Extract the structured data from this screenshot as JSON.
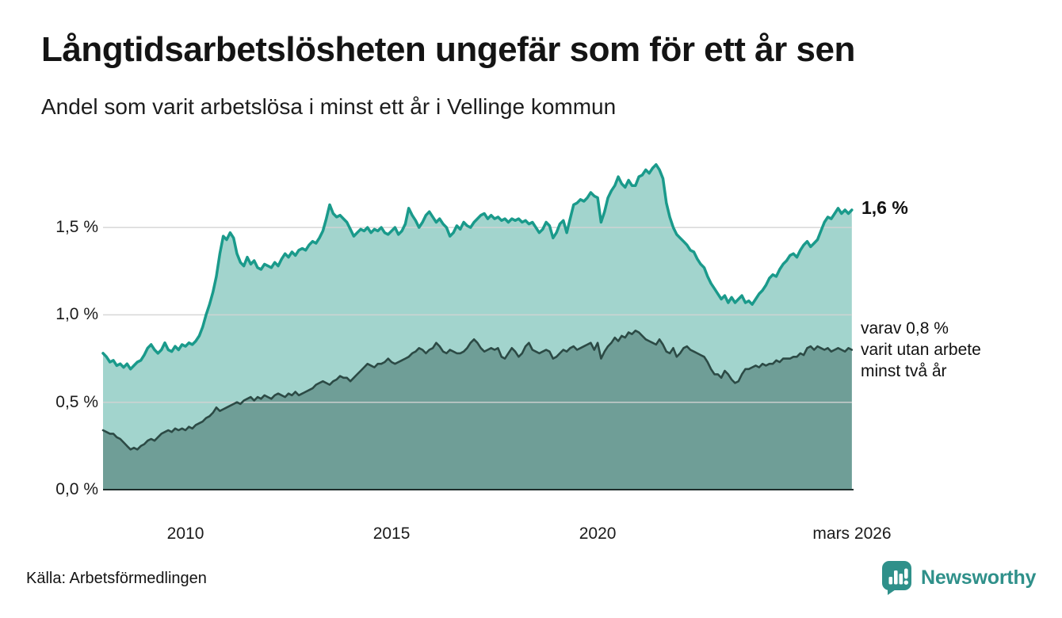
{
  "header": {
    "title": "Långtidsarbetslösheten ungefär som för ett år sen",
    "subtitle": "Andel som varit arbetslösa i minst ett år i Vellinge kommun"
  },
  "footer": {
    "source": "Källa: Arbetsförmedlingen",
    "brand": "Newsworthy",
    "brand_color": "#2f908a"
  },
  "chart_data": {
    "type": "area",
    "title": "Långtidsarbetslösheten ungefär som för ett år sen",
    "subtitle": "Andel som varit arbetslösa i minst ett år i Vellinge kommun",
    "grid": true,
    "x_range": [
      2008.0,
      2026.17
    ],
    "y_range": [
      0,
      1.95
    ],
    "x_ticks": [
      {
        "label": "2010",
        "year": 2010
      },
      {
        "label": "2015",
        "year": 2015
      },
      {
        "label": "2020",
        "year": 2020
      },
      {
        "label": "mars 2026",
        "year": 2026.17
      }
    ],
    "y_ticks": [
      {
        "label": "0,0 %",
        "value": 0.0
      },
      {
        "label": "0,5 %",
        "value": 0.5
      },
      {
        "label": "1,0 %",
        "value": 1.0
      },
      {
        "label": "1,5 %",
        "value": 1.5
      }
    ],
    "colors": {
      "line_total": "#1a9a8b",
      "fill_total": "#a2d4cd",
      "line_two_years": "#2c4a45",
      "fill_two_years": "#6f9e97",
      "grid": "#d3d3d3",
      "axis": "#202e2c"
    },
    "annotations": {
      "end_total": "1,6 %",
      "end_sub": "varav 0,8 %\nvarit utan arbete\nminst två år"
    },
    "series": [
      {
        "key": "arbetslosa_minst_ett_ar",
        "latest_label": "1,6 %",
        "start_year": 2008.0,
        "step_months": 1,
        "values": [
          0.78,
          0.76,
          0.73,
          0.74,
          0.71,
          0.72,
          0.7,
          0.72,
          0.69,
          0.71,
          0.73,
          0.74,
          0.77,
          0.81,
          0.83,
          0.8,
          0.78,
          0.8,
          0.84,
          0.8,
          0.79,
          0.82,
          0.8,
          0.83,
          0.82,
          0.84,
          0.83,
          0.85,
          0.88,
          0.93,
          1.0,
          1.06,
          1.13,
          1.22,
          1.35,
          1.45,
          1.43,
          1.47,
          1.44,
          1.35,
          1.3,
          1.28,
          1.33,
          1.29,
          1.31,
          1.27,
          1.26,
          1.29,
          1.28,
          1.27,
          1.3,
          1.28,
          1.32,
          1.35,
          1.33,
          1.36,
          1.34,
          1.37,
          1.38,
          1.37,
          1.4,
          1.42,
          1.41,
          1.44,
          1.48,
          1.55,
          1.63,
          1.58,
          1.56,
          1.57,
          1.55,
          1.53,
          1.49,
          1.45,
          1.47,
          1.49,
          1.48,
          1.5,
          1.47,
          1.49,
          1.48,
          1.5,
          1.47,
          1.46,
          1.48,
          1.5,
          1.46,
          1.48,
          1.52,
          1.61,
          1.57,
          1.54,
          1.5,
          1.53,
          1.57,
          1.59,
          1.56,
          1.53,
          1.55,
          1.52,
          1.5,
          1.45,
          1.47,
          1.51,
          1.49,
          1.53,
          1.51,
          1.5,
          1.53,
          1.55,
          1.57,
          1.58,
          1.55,
          1.57,
          1.55,
          1.56,
          1.54,
          1.55,
          1.53,
          1.55,
          1.54,
          1.55,
          1.53,
          1.54,
          1.52,
          1.53,
          1.5,
          1.47,
          1.49,
          1.53,
          1.51,
          1.44,
          1.47,
          1.52,
          1.54,
          1.47,
          1.55,
          1.63,
          1.64,
          1.66,
          1.65,
          1.67,
          1.7,
          1.68,
          1.67,
          1.53,
          1.59,
          1.67,
          1.71,
          1.74,
          1.79,
          1.75,
          1.73,
          1.77,
          1.74,
          1.74,
          1.79,
          1.8,
          1.83,
          1.81,
          1.84,
          1.86,
          1.83,
          1.78,
          1.64,
          1.56,
          1.5,
          1.46,
          1.44,
          1.42,
          1.4,
          1.37,
          1.36,
          1.32,
          1.29,
          1.27,
          1.22,
          1.18,
          1.15,
          1.12,
          1.09,
          1.11,
          1.07,
          1.1,
          1.07,
          1.09,
          1.11,
          1.07,
          1.08,
          1.06,
          1.09,
          1.12,
          1.14,
          1.17,
          1.21,
          1.23,
          1.22,
          1.26,
          1.29,
          1.31,
          1.34,
          1.35,
          1.33,
          1.37,
          1.4,
          1.42,
          1.39,
          1.41,
          1.43,
          1.48,
          1.53,
          1.56,
          1.55,
          1.58,
          1.61,
          1.58,
          1.6,
          1.58,
          1.6
        ]
      },
      {
        "key": "utan_arbete_minst_tva_ar",
        "latest_label": "0,8 %",
        "start_year": 2008.0,
        "step_months": 1,
        "values": [
          0.34,
          0.33,
          0.32,
          0.32,
          0.3,
          0.29,
          0.27,
          0.25,
          0.23,
          0.24,
          0.23,
          0.25,
          0.26,
          0.28,
          0.29,
          0.28,
          0.3,
          0.32,
          0.33,
          0.34,
          0.33,
          0.35,
          0.34,
          0.35,
          0.34,
          0.36,
          0.35,
          0.37,
          0.38,
          0.39,
          0.41,
          0.42,
          0.44,
          0.47,
          0.45,
          0.46,
          0.47,
          0.48,
          0.49,
          0.5,
          0.49,
          0.51,
          0.52,
          0.53,
          0.51,
          0.53,
          0.52,
          0.54,
          0.53,
          0.52,
          0.54,
          0.55,
          0.54,
          0.53,
          0.55,
          0.54,
          0.56,
          0.54,
          0.55,
          0.56,
          0.57,
          0.58,
          0.6,
          0.61,
          0.62,
          0.61,
          0.6,
          0.62,
          0.63,
          0.65,
          0.64,
          0.64,
          0.62,
          0.64,
          0.66,
          0.68,
          0.7,
          0.72,
          0.71,
          0.7,
          0.72,
          0.72,
          0.73,
          0.75,
          0.73,
          0.72,
          0.73,
          0.74,
          0.75,
          0.76,
          0.78,
          0.79,
          0.81,
          0.8,
          0.78,
          0.8,
          0.81,
          0.84,
          0.82,
          0.79,
          0.78,
          0.8,
          0.79,
          0.78,
          0.78,
          0.79,
          0.81,
          0.84,
          0.86,
          0.84,
          0.81,
          0.79,
          0.8,
          0.81,
          0.8,
          0.81,
          0.76,
          0.75,
          0.78,
          0.81,
          0.79,
          0.76,
          0.78,
          0.82,
          0.84,
          0.8,
          0.79,
          0.78,
          0.79,
          0.8,
          0.79,
          0.75,
          0.76,
          0.78,
          0.8,
          0.79,
          0.81,
          0.82,
          0.8,
          0.81,
          0.82,
          0.83,
          0.84,
          0.8,
          0.84,
          0.75,
          0.79,
          0.82,
          0.84,
          0.87,
          0.85,
          0.88,
          0.87,
          0.9,
          0.89,
          0.91,
          0.9,
          0.88,
          0.86,
          0.85,
          0.84,
          0.83,
          0.86,
          0.83,
          0.79,
          0.78,
          0.81,
          0.76,
          0.78,
          0.81,
          0.82,
          0.8,
          0.79,
          0.78,
          0.77,
          0.76,
          0.73,
          0.69,
          0.66,
          0.66,
          0.64,
          0.68,
          0.66,
          0.63,
          0.61,
          0.62,
          0.66,
          0.69,
          0.69,
          0.7,
          0.71,
          0.7,
          0.72,
          0.71,
          0.72,
          0.72,
          0.74,
          0.73,
          0.75,
          0.75,
          0.75,
          0.76,
          0.76,
          0.78,
          0.77,
          0.81,
          0.82,
          0.8,
          0.82,
          0.81,
          0.8,
          0.81,
          0.79,
          0.8,
          0.81,
          0.8,
          0.79,
          0.81,
          0.8
        ]
      }
    ]
  }
}
